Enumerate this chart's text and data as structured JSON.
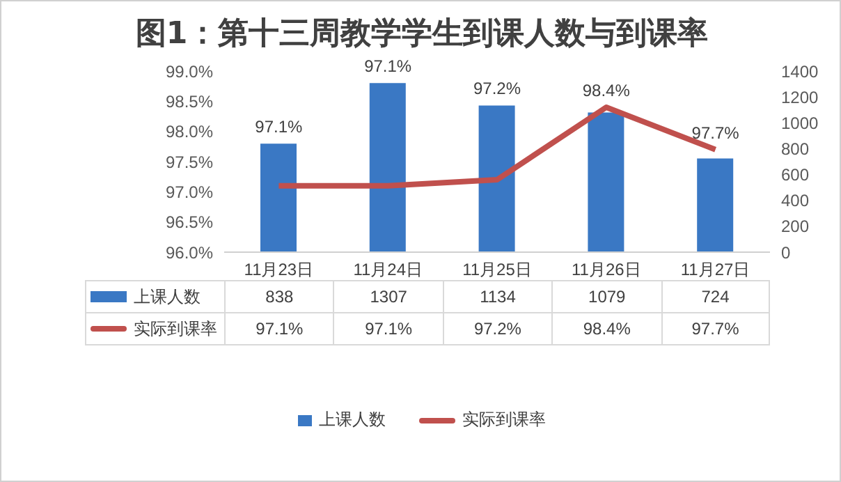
{
  "chart_data": {
    "type": "bar",
    "title": "图1：第十三周教学学生到课人数与到课率",
    "categories": [
      "11月23日",
      "11月24日",
      "11月25日",
      "11月26日",
      "11月27日"
    ],
    "series": [
      {
        "name": "上课人数",
        "color": "#3a78c4",
        "axis": "y2",
        "values": [
          838,
          1307,
          1134,
          1079,
          724
        ]
      },
      {
        "name": "实际到课率",
        "type": "line",
        "color": "#c0504d",
        "values": [
          97.1,
          97.1,
          97.2,
          98.4,
          97.7
        ],
        "value_labels": [
          "97.1%",
          "97.1%",
          "97.2%",
          "98.4%",
          "97.7%"
        ]
      }
    ],
    "ylim": [
      96,
      99
    ],
    "yticks": [
      {
        "value": 96,
        "label": "96.0%"
      },
      {
        "value": 96.5,
        "label": "96.5%"
      },
      {
        "value": 97,
        "label": "97.0%"
      },
      {
        "value": 97.5,
        "label": "97.5%"
      },
      {
        "value": 98,
        "label": "98.0%"
      },
      {
        "value": 98.5,
        "label": "98.5%"
      },
      {
        "value": 99,
        "label": "99.0%"
      }
    ],
    "y2lim": [
      0,
      1400
    ],
    "y2ticks": [
      0,
      200,
      400,
      600,
      800,
      1000,
      1200,
      1400
    ],
    "data_labels": true,
    "grid": false,
    "legend": "bottom",
    "marker": "none"
  }
}
